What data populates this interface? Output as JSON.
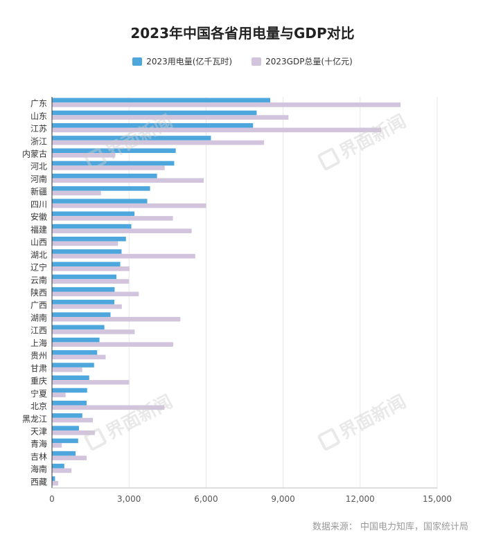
{
  "chart_data": {
    "type": "bar",
    "orientation": "horizontal",
    "title": "2023年中国各省用电量与GDP对比",
    "categories": [
      "广东",
      "山东",
      "江苏",
      "浙江",
      "内蒙古",
      "河北",
      "河南",
      "新疆",
      "四川",
      "安徽",
      "福建",
      "山西",
      "湖北",
      "辽宁",
      "云南",
      "陕西",
      "广西",
      "湖南",
      "江西",
      "上海",
      "贵州",
      "甘肃",
      "重庆",
      "宁夏",
      "北京",
      "黑龙江",
      "天津",
      "青海",
      "吉林",
      "海南",
      "西藏"
    ],
    "series": [
      {
        "name": "2023用电量(亿千瓦时)",
        "color": "#4da6dc",
        "values": [
          8500,
          7970,
          7830,
          6190,
          4820,
          4760,
          4090,
          3820,
          3710,
          3210,
          3090,
          2880,
          2710,
          2660,
          2510,
          2440,
          2430,
          2280,
          2040,
          1850,
          1760,
          1640,
          1450,
          1370,
          1350,
          1180,
          1050,
          1020,
          920,
          480,
          120
        ]
      },
      {
        "name": "2023GDP总量(十亿元)",
        "color": "#d2c4dd",
        "values": [
          13570,
          9210,
          12820,
          8260,
          2460,
          4390,
          5910,
          1910,
          6000,
          4710,
          5440,
          2570,
          5580,
          3020,
          3000,
          3380,
          2720,
          5000,
          3220,
          4720,
          2090,
          1180,
          3010,
          530,
          4380,
          1590,
          1670,
          380,
          1350,
          760,
          240
        ]
      }
    ],
    "xlim": [
      0,
      15000
    ],
    "xticks": [
      0,
      3000,
      6000,
      9000,
      12000,
      15000
    ],
    "xtick_labels": [
      "0",
      "3,000",
      "6,000",
      "9,000",
      "12,000",
      "15,000"
    ],
    "grid": true,
    "legend_position": "top-center"
  },
  "watermark": "界面新闻",
  "source": "数据来源：  中国电力知库，国家统计局"
}
